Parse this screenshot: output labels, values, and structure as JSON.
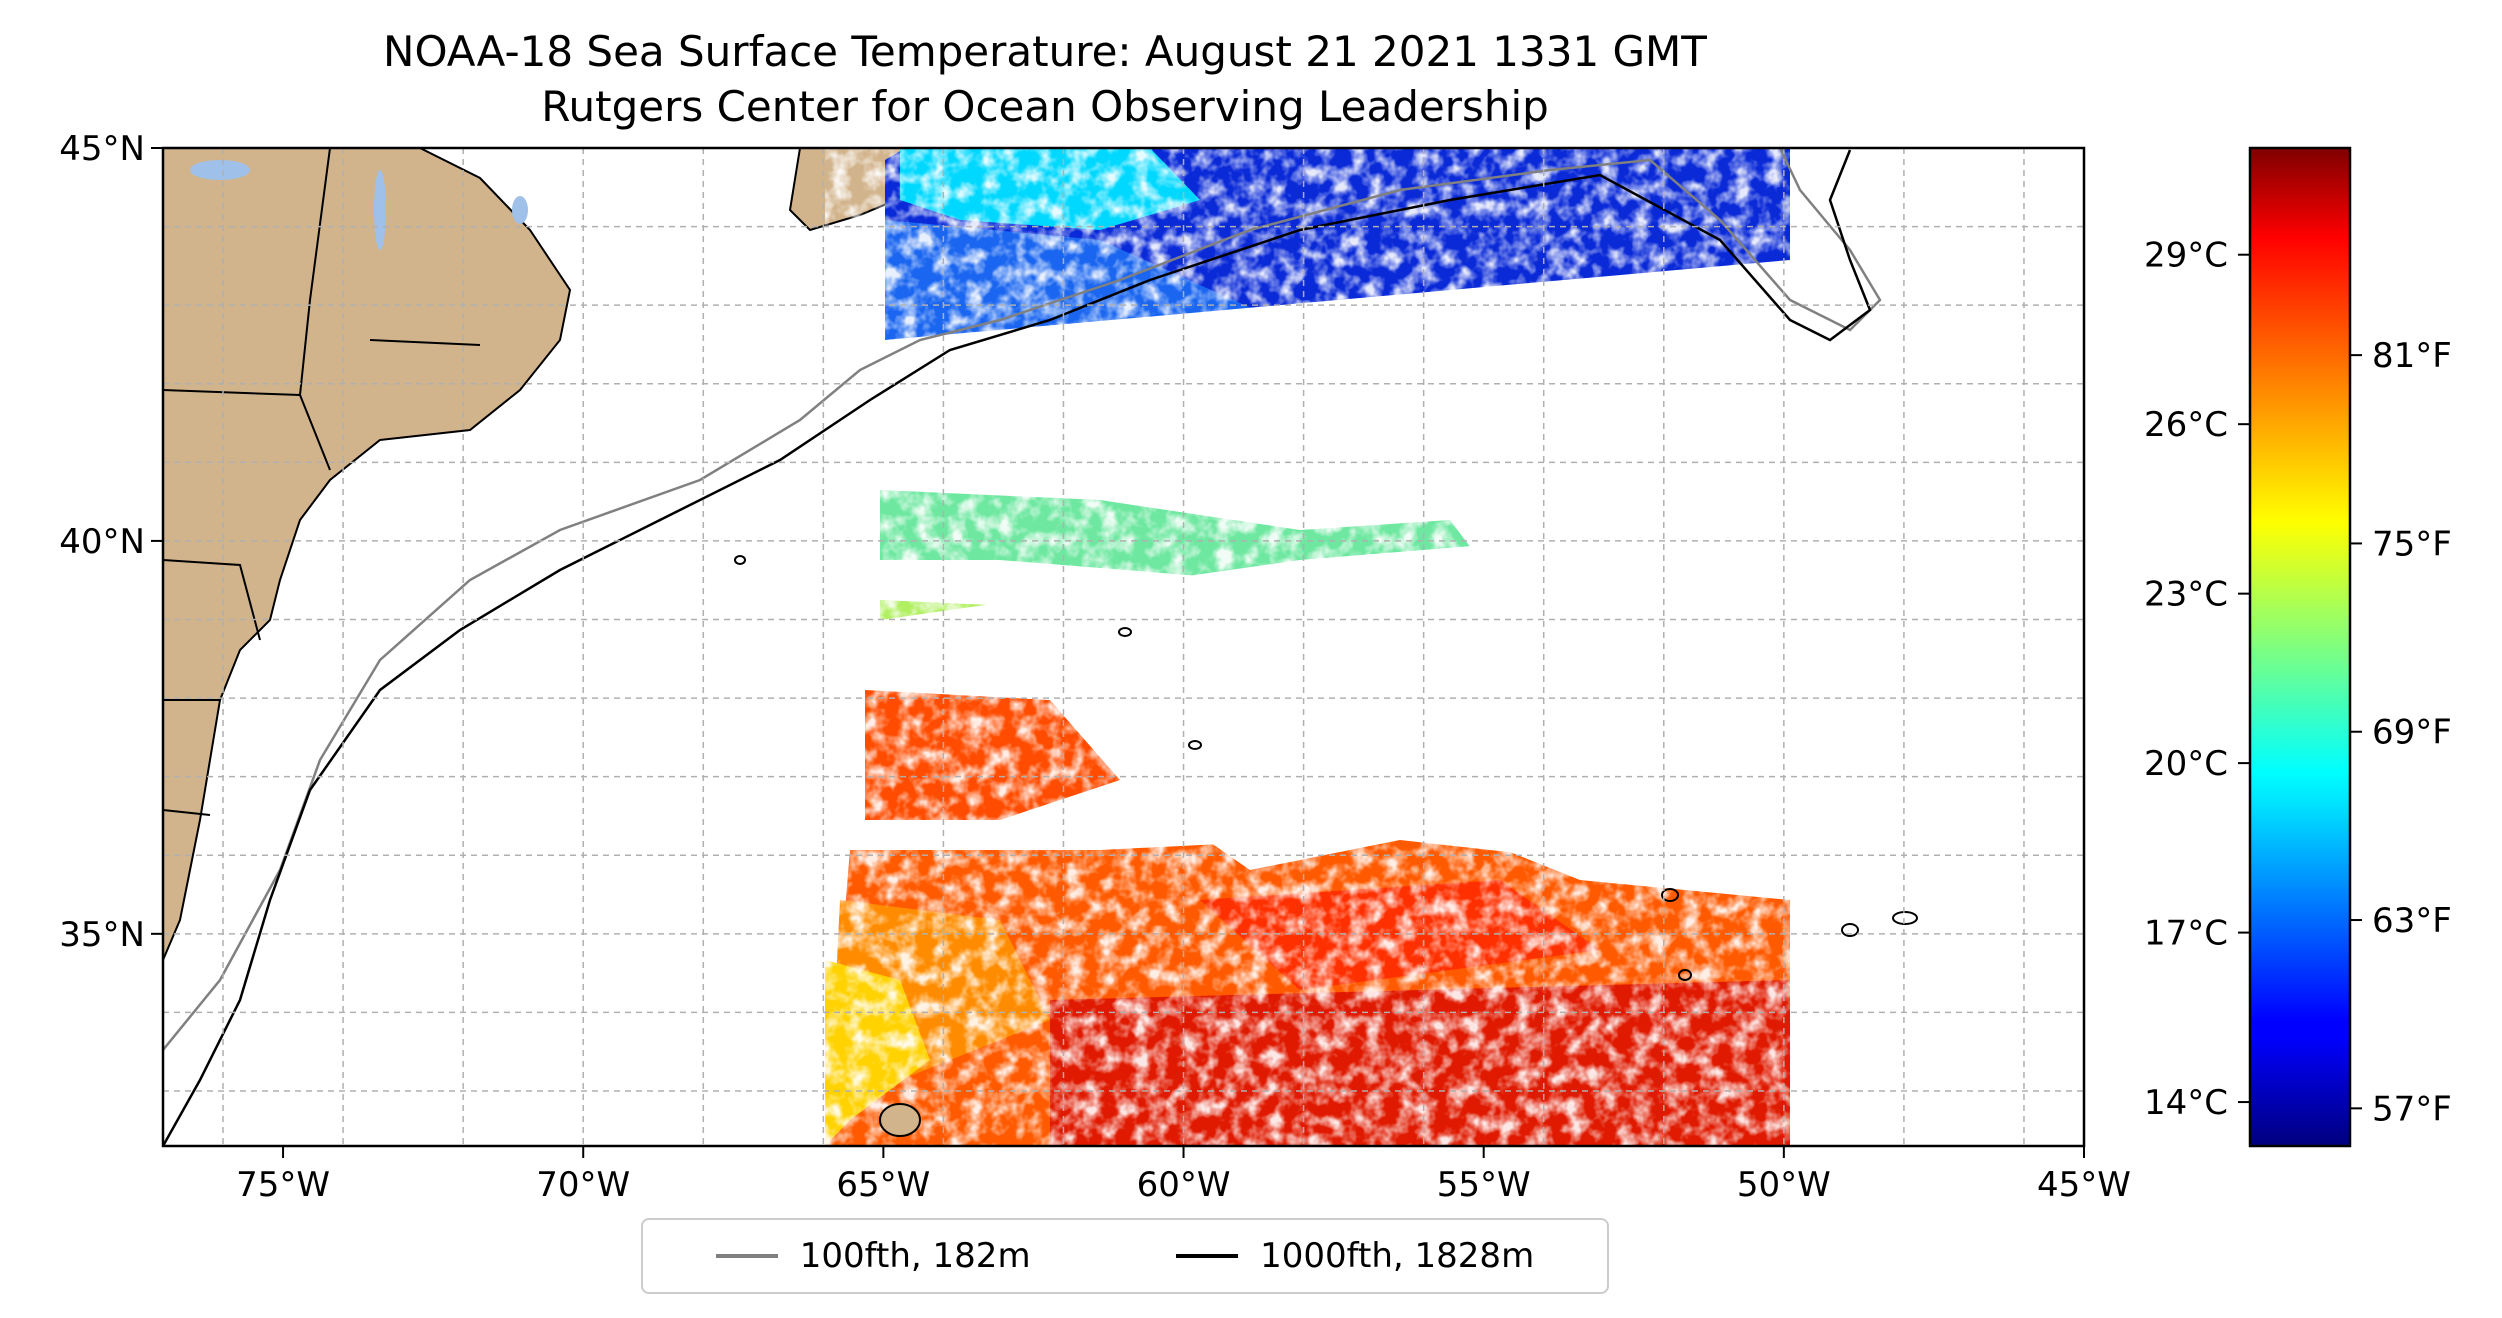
{
  "title": {
    "line1": "NOAA-18 Sea Surface Temperature: August 21 2021 1331 GMT",
    "line2": "Rutgers Center for Ocean Observing Leadership"
  },
  "map": {
    "lon_range": [
      -77,
      -45
    ],
    "lat_range": [
      32.3,
      45
    ],
    "x_ticks": [
      {
        "lon": -75,
        "label": "75°W"
      },
      {
        "lon": -70,
        "label": "70°W"
      },
      {
        "lon": -65,
        "label": "65°W"
      },
      {
        "lon": -60,
        "label": "60°W"
      },
      {
        "lon": -55,
        "label": "55°W"
      },
      {
        "lon": -50,
        "label": "50°W"
      },
      {
        "lon": -45,
        "label": "45°W"
      }
    ],
    "y_ticks": [
      {
        "lat": 45,
        "label": "45°N"
      },
      {
        "lat": 40,
        "label": "40°N"
      },
      {
        "lat": 35,
        "label": "35°N"
      }
    ],
    "gridlines": true,
    "land_color": "#d2b48c",
    "lake_color": "#9fc0e8"
  },
  "colorbar": {
    "colormap": "jet",
    "celsius_ticks": [
      {
        "label": "29°C",
        "value": 29
      },
      {
        "label": "26°C",
        "value": 26
      },
      {
        "label": "23°C",
        "value": 23
      },
      {
        "label": "20°C",
        "value": 20
      },
      {
        "label": "17°C",
        "value": 17
      },
      {
        "label": "14°C",
        "value": 14
      }
    ],
    "fahrenheit_ticks": [
      {
        "label": "81°F",
        "value": 81
      },
      {
        "label": "75°F",
        "value": 75
      },
      {
        "label": "69°F",
        "value": 69
      },
      {
        "label": "63°F",
        "value": 63
      },
      {
        "label": "57°F",
        "value": 57
      }
    ],
    "range_f": [
      55.8,
      87.6
    ]
  },
  "legend": {
    "items": [
      {
        "label": "100fth, 182m",
        "color": "#808080"
      },
      {
        "label": "1000fth, 1828m",
        "color": "#000000"
      }
    ]
  }
}
